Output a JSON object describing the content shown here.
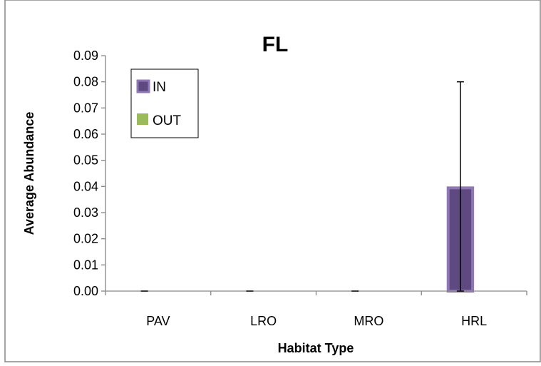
{
  "chart_data": {
    "type": "bar",
    "title": "FL",
    "xlabel": "Habitat Type",
    "ylabel": "Average Abundance",
    "categories": [
      "PAV",
      "LRO",
      "MRO",
      "HRL"
    ],
    "series": [
      {
        "name": "IN",
        "values": [
          0,
          0,
          0,
          0.04
        ],
        "error": [
          0,
          0,
          0,
          0.04
        ],
        "color": "#5e4a80"
      },
      {
        "name": "OUT",
        "values": [
          0,
          0,
          0,
          0
        ],
        "error": [
          0,
          0,
          0,
          0
        ],
        "color": "#9bbb59"
      }
    ],
    "ylim": [
      0,
      0.09
    ],
    "yticks": [
      "0.00",
      "0.01",
      "0.02",
      "0.03",
      "0.04",
      "0.05",
      "0.06",
      "0.07",
      "0.08",
      "0.09"
    ],
    "grid": false,
    "legend_position": "top-left"
  }
}
